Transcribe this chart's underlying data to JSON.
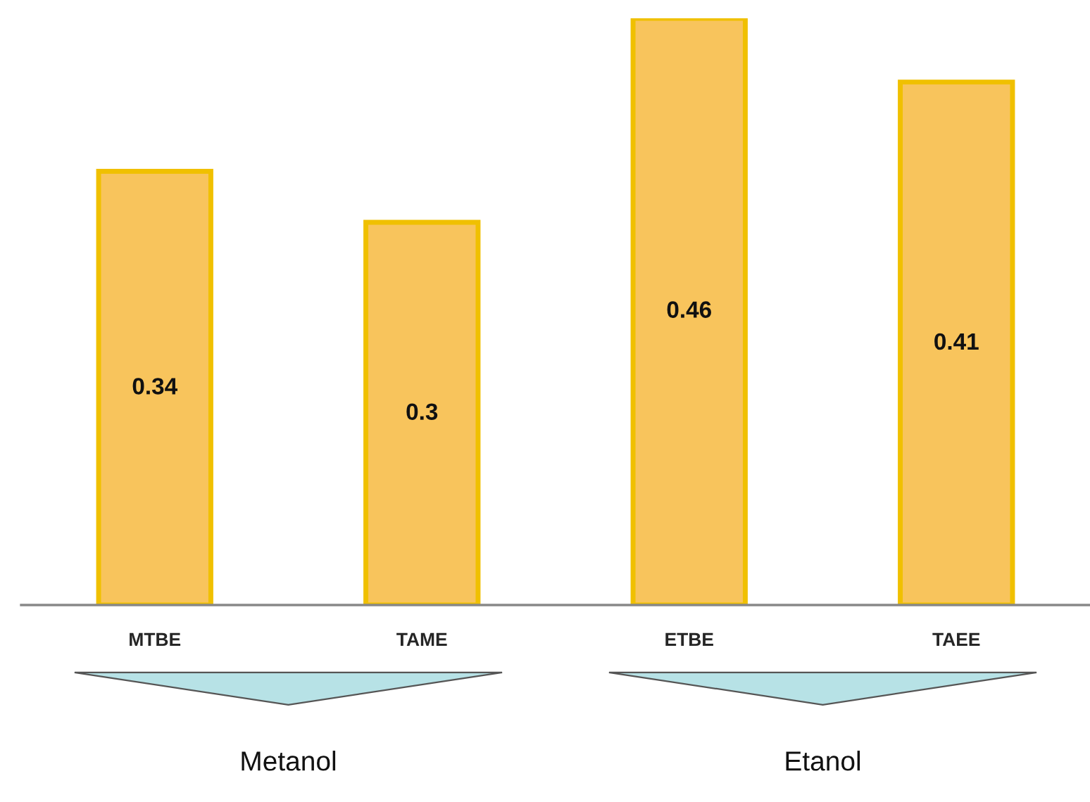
{
  "chart_data": {
    "type": "bar",
    "categories": [
      "MTBE",
      "TAME",
      "ETBE",
      "TAEE"
    ],
    "values": [
      0.34,
      0.3,
      0.46,
      0.41
    ],
    "color": "#f8c45c",
    "ylim": [
      0,
      0.46
    ],
    "data_labels": true,
    "annotations": [
      "Metanol",
      "Etanol"
    ]
  }
}
